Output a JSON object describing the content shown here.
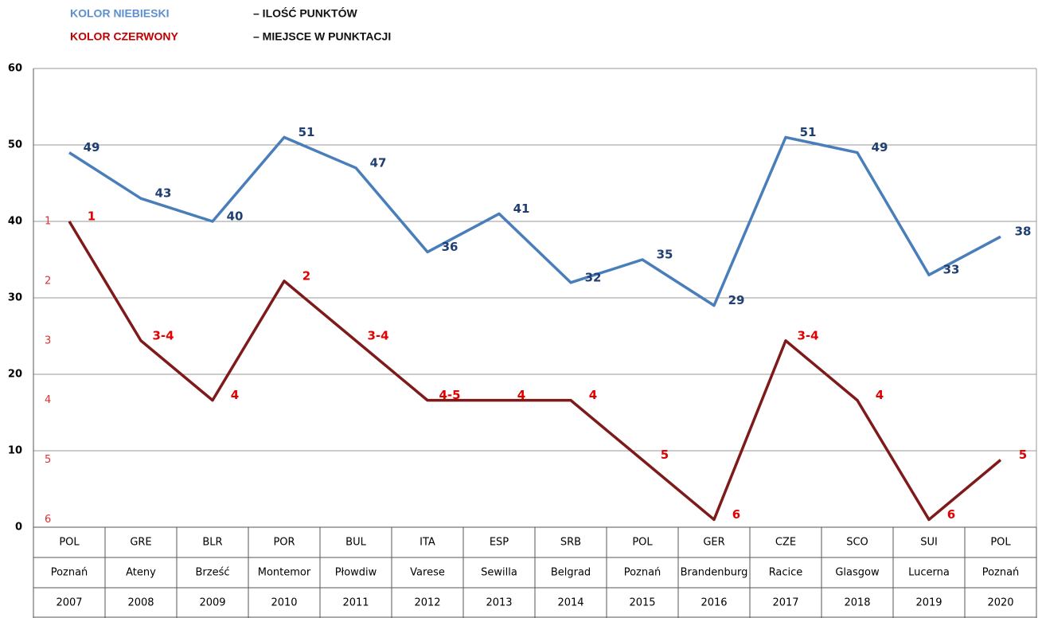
{
  "chart_data": {
    "type": "line",
    "legend_note": [
      "– ILOŚĆ PUNKTÓW",
      "– MIEJSCE W PUNKTACJI"
    ],
    "categories": [
      [
        "POL",
        "Poznań",
        "2007"
      ],
      [
        "GRE",
        "Ateny",
        "2008"
      ],
      [
        "BLR",
        "Brześć",
        "2009"
      ],
      [
        "POR",
        "Montemor",
        "2010"
      ],
      [
        "BUL",
        "Płowdiw",
        "2011"
      ],
      [
        "ITA",
        "Varese",
        "2012"
      ],
      [
        "ESP",
        "Sewilla",
        "2013"
      ],
      [
        "SRB",
        "Belgrad",
        "2014"
      ],
      [
        "POL",
        "Poznań",
        "2015"
      ],
      [
        "GER",
        "Brandenburg",
        "2016"
      ],
      [
        "CZE",
        "Racice",
        "2017"
      ],
      [
        "SCO",
        "Glasgow",
        "2018"
      ],
      [
        "SUI",
        "Lucerna",
        "2019"
      ],
      [
        "POL",
        "Poznań",
        "2020"
      ]
    ],
    "series": [
      {
        "name": "KOLOR NIEBIESKI",
        "color": "#4a7ebb",
        "label_color": "#1f3f73",
        "values": [
          49,
          43,
          40,
          51,
          47,
          36,
          41,
          32,
          35,
          29,
          51,
          49,
          33,
          38
        ]
      },
      {
        "name": "KOLOR CZERWONY",
        "color": "#7f1a1a",
        "label_color": "#e00000",
        "axis": "y2",
        "values": [
          1,
          3,
          4,
          2,
          3,
          4,
          4,
          4,
          5,
          6,
          3,
          4,
          6,
          5
        ],
        "value_labels": [
          "1",
          "3-4",
          "4",
          "2",
          "3-4",
          "4-5",
          "4",
          "4",
          "5",
          "6",
          "3-4",
          "4",
          "6",
          "5"
        ]
      }
    ],
    "ylim": [
      0,
      60
    ],
    "yticks": [
      0,
      10,
      20,
      30,
      40,
      50,
      60
    ],
    "y2lim": [
      6.128,
      -1.564
    ],
    "y2ticks": [
      1,
      2,
      3,
      4,
      5,
      6
    ],
    "grid": true
  }
}
